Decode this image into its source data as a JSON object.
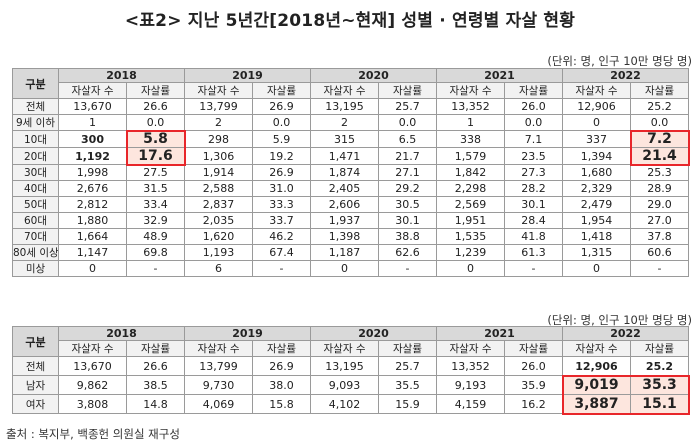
{
  "title": "<표2> 지난 5년간[2018년~현재] 성별 · 연령별 자살 현황",
  "unit_note": "(단위: 명, 인구 10만 명당 명)",
  "years": [
    "2018",
    "2019",
    "2020",
    "2021",
    "2022"
  ],
  "header": {
    "category": "구분",
    "count": "자살자 수",
    "rate": "자살률"
  },
  "age_table": {
    "rows": [
      {
        "label": "전체",
        "cells": [
          "13,670",
          "26.6",
          "13,799",
          "26.9",
          "13,195",
          "25.7",
          "13,352",
          "26.0",
          "12,906",
          "25.2"
        ]
      },
      {
        "label": "9세 이하",
        "cells": [
          "1",
          "0.0",
          "2",
          "0.0",
          "2",
          "0.0",
          "1",
          "0.0",
          "0",
          "0.0"
        ]
      },
      {
        "label": "10대",
        "cells": [
          "300",
          "5.8",
          "298",
          "5.9",
          "315",
          "6.5",
          "338",
          "7.1",
          "337",
          "7.2"
        ]
      },
      {
        "label": "20대",
        "cells": [
          "1,192",
          "17.6",
          "1,306",
          "19.2",
          "1,471",
          "21.7",
          "1,579",
          "23.5",
          "1,394",
          "21.4"
        ]
      },
      {
        "label": "30대",
        "cells": [
          "1,998",
          "27.5",
          "1,914",
          "26.9",
          "1,874",
          "27.1",
          "1,842",
          "27.3",
          "1,680",
          "25.3"
        ]
      },
      {
        "label": "40대",
        "cells": [
          "2,676",
          "31.5",
          "2,588",
          "31.0",
          "2,405",
          "29.2",
          "2,298",
          "28.2",
          "2,329",
          "28.9"
        ]
      },
      {
        "label": "50대",
        "cells": [
          "2,812",
          "33.4",
          "2,837",
          "33.3",
          "2,606",
          "30.5",
          "2,569",
          "30.1",
          "2,479",
          "29.0"
        ]
      },
      {
        "label": "60대",
        "cells": [
          "1,880",
          "32.9",
          "2,035",
          "33.7",
          "1,937",
          "30.1",
          "1,951",
          "28.4",
          "1,954",
          "27.0"
        ]
      },
      {
        "label": "70대",
        "cells": [
          "1,664",
          "48.9",
          "1,620",
          "46.2",
          "1,398",
          "38.8",
          "1,535",
          "41.8",
          "1,418",
          "37.8"
        ]
      },
      {
        "label": "80세 이상",
        "cells": [
          "1,147",
          "69.8",
          "1,193",
          "67.4",
          "1,187",
          "62.6",
          "1,239",
          "61.3",
          "1,315",
          "60.6"
        ]
      },
      {
        "label": "미상",
        "cells": [
          "0",
          "-",
          "6",
          "-",
          "0",
          "-",
          "0",
          "-",
          "0",
          "-"
        ]
      }
    ]
  },
  "sex_table": {
    "rows": [
      {
        "label": "전체",
        "cells": [
          "13,670",
          "26.6",
          "13,799",
          "26.9",
          "13,195",
          "25.7",
          "13,352",
          "26.0",
          "12,906",
          "25.2"
        ]
      },
      {
        "label": "남자",
        "cells": [
          "9,862",
          "38.5",
          "9,730",
          "38.0",
          "9,093",
          "35.5",
          "9,193",
          "35.9",
          "9,019",
          "35.3"
        ]
      },
      {
        "label": "여자",
        "cells": [
          "3,808",
          "14.8",
          "4,069",
          "15.8",
          "4,102",
          "15.9",
          "4,159",
          "16.2",
          "3,887",
          "15.1"
        ]
      }
    ]
  },
  "source": "출처 : 복지부, 백종헌 의원실 재구성",
  "highlight_color": "#e8262a",
  "highlight_fill": "#fde6de"
}
